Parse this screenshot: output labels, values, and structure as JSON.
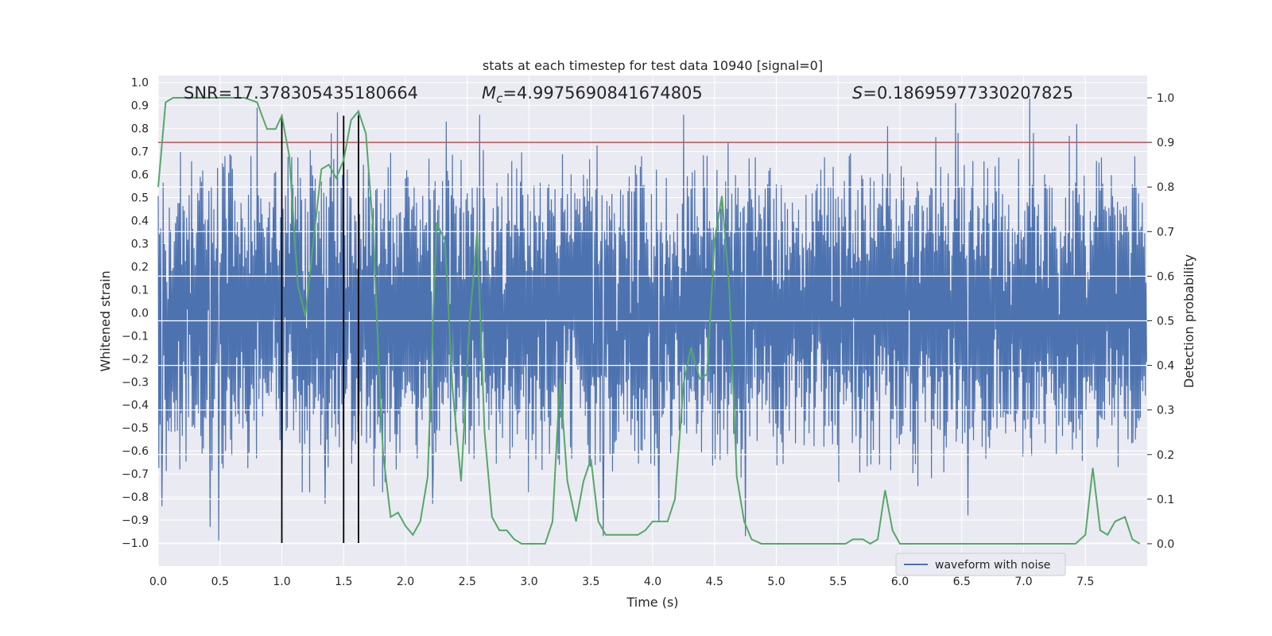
{
  "chart_data": {
    "type": "line",
    "title": "stats at each timestep for test data 10940 [signal=0]",
    "xlabel": "Time (s)",
    "ylabel_left": "Whitened strain",
    "ylabel_right": "Detection probability",
    "xlim": [
      0.0,
      8.0
    ],
    "ylim_left": [
      -1.1,
      1.03
    ],
    "ylim_right": [
      -0.05,
      1.05
    ],
    "x_ticks": [
      0.0,
      0.5,
      1.0,
      1.5,
      2.0,
      2.5,
      3.0,
      3.5,
      4.0,
      4.5,
      5.0,
      5.5,
      6.0,
      6.5,
      7.0,
      7.5
    ],
    "x_tick_labels": [
      "0.0",
      "0.5",
      "1.0",
      "1.5",
      "2.0",
      "2.5",
      "3.0",
      "3.5",
      "4.0",
      "4.5",
      "5.0",
      "5.5",
      "6.0",
      "6.5",
      "7.0",
      "7.5"
    ],
    "y_left_ticks": [
      1.0,
      0.9,
      0.8,
      0.7,
      0.6,
      0.5,
      0.4,
      0.3,
      0.2,
      0.1,
      0.0,
      -0.1,
      -0.2,
      -0.3,
      -0.4,
      -0.5,
      -0.6,
      -0.7,
      -0.8,
      -0.9,
      -1.0
    ],
    "y_left_tick_labels": [
      "1.0",
      "0.9",
      "0.8",
      "0.7",
      "0.6",
      "0.5",
      "0.4",
      "0.3",
      "0.2",
      "0.1",
      "0.0",
      "−0.1",
      "−0.2",
      "−0.3",
      "−0.4",
      "−0.5",
      "−0.6",
      "−0.7",
      "−0.8",
      "−0.9",
      "−1.0"
    ],
    "y_right_ticks": [
      1.0,
      0.9,
      0.8,
      0.7,
      0.6,
      0.5,
      0.4,
      0.3,
      0.2,
      0.1,
      0.0
    ],
    "y_right_tick_labels": [
      "1.0",
      "0.9",
      "0.8",
      "0.7",
      "0.6",
      "0.5",
      "0.4",
      "0.3",
      "0.2",
      "0.1",
      "0.0"
    ],
    "grid": true,
    "annotations": {
      "snr": "SNR=17.378305435180664",
      "mc_symbol": "M",
      "mc_subscript": "c",
      "mc_value": "=4.9975690841674805",
      "s_symbol": "S",
      "s_value": "=0.18695977330207825"
    },
    "threshold": {
      "value": 0.9,
      "axis": "right",
      "color": "#c44e52"
    },
    "vertical_markers": {
      "x": [
        1.0,
        1.5,
        1.62
      ],
      "ymin": -1.0,
      "ymax": 0.96,
      "color": "#000000"
    },
    "waveform": {
      "name": "waveform with noise",
      "color": "#4c72b0",
      "duration": 8.0,
      "num_samples": 1600,
      "envelope_typical": 0.4,
      "peaks": [
        {
          "x": 0.03,
          "y": -0.84
        },
        {
          "x": 0.42,
          "y": -0.93
        },
        {
          "x": 0.49,
          "y": -0.99
        },
        {
          "x": 0.8,
          "y": 0.89
        },
        {
          "x": 1.0,
          "y": -0.76
        },
        {
          "x": 1.35,
          "y": -0.83
        },
        {
          "x": 1.45,
          "y": 0.87
        },
        {
          "x": 1.62,
          "y": 0.88
        },
        {
          "x": 2.22,
          "y": -0.83
        },
        {
          "x": 2.33,
          "y": 0.83
        },
        {
          "x": 2.6,
          "y": 0.86
        },
        {
          "x": 3.6,
          "y": -0.97
        },
        {
          "x": 4.05,
          "y": -0.91
        },
        {
          "x": 4.25,
          "y": 0.86
        },
        {
          "x": 4.75,
          "y": -0.97
        },
        {
          "x": 5.9,
          "y": 0.81
        },
        {
          "x": 6.45,
          "y": 0.91
        },
        {
          "x": 6.55,
          "y": -0.88
        },
        {
          "x": 7.05,
          "y": 0.94
        },
        {
          "x": 7.43,
          "y": 0.82
        }
      ]
    },
    "probability": {
      "name": "detection probability",
      "color": "#55a868",
      "x": [
        0.0,
        0.06,
        0.12,
        0.2,
        0.3,
        0.4,
        0.5,
        0.6,
        0.7,
        0.8,
        0.88,
        0.95,
        1.0,
        1.06,
        1.13,
        1.19,
        1.26,
        1.32,
        1.38,
        1.44,
        1.5,
        1.56,
        1.62,
        1.68,
        1.74,
        1.8,
        1.82,
        1.88,
        1.94,
        2.0,
        2.06,
        2.12,
        2.18,
        2.25,
        2.32,
        2.38,
        2.45,
        2.52,
        2.58,
        2.64,
        2.7,
        2.76,
        2.82,
        2.88,
        2.94,
        3.0,
        3.06,
        3.13,
        3.19,
        3.25,
        3.31,
        3.38,
        3.44,
        3.5,
        3.56,
        3.62,
        3.68,
        3.75,
        3.82,
        3.88,
        3.94,
        4.0,
        4.06,
        4.12,
        4.18,
        4.25,
        4.31,
        4.38,
        4.44,
        4.5,
        4.56,
        4.62,
        4.68,
        4.74,
        4.8,
        4.88,
        5.0,
        5.2,
        5.4,
        5.5,
        5.56,
        5.62,
        5.7,
        5.76,
        5.82,
        5.88,
        5.94,
        6.0,
        6.1,
        6.3,
        6.5,
        6.7,
        6.9,
        7.0,
        7.1,
        7.3,
        7.42,
        7.5,
        7.56,
        7.62,
        7.68,
        7.74,
        7.82,
        7.88,
        7.94
      ],
      "y": [
        0.8,
        0.99,
        1.0,
        1.0,
        1.0,
        1.0,
        1.0,
        1.0,
        1.0,
        0.99,
        0.93,
        0.93,
        0.96,
        0.87,
        0.58,
        0.51,
        0.69,
        0.84,
        0.85,
        0.82,
        0.86,
        0.95,
        0.97,
        0.92,
        0.7,
        0.3,
        0.2,
        0.06,
        0.07,
        0.04,
        0.02,
        0.05,
        0.15,
        0.72,
        0.68,
        0.35,
        0.14,
        0.5,
        0.7,
        0.25,
        0.06,
        0.03,
        0.03,
        0.01,
        0.0,
        0.0,
        0.0,
        0.0,
        0.05,
        0.37,
        0.14,
        0.05,
        0.14,
        0.19,
        0.05,
        0.02,
        0.02,
        0.02,
        0.02,
        0.02,
        0.03,
        0.05,
        0.05,
        0.05,
        0.1,
        0.36,
        0.44,
        0.37,
        0.38,
        0.68,
        0.78,
        0.57,
        0.15,
        0.05,
        0.01,
        0.0,
        0.0,
        0.0,
        0.0,
        0.0,
        0.0,
        0.01,
        0.01,
        0.0,
        0.01,
        0.12,
        0.03,
        0.0,
        0.0,
        0.0,
        0.0,
        0.0,
        0.0,
        0.0,
        0.0,
        0.0,
        0.0,
        0.02,
        0.17,
        0.03,
        0.02,
        0.05,
        0.06,
        0.01,
        0.0
      ]
    },
    "legend": {
      "position": "lower-right",
      "entries": [
        "waveform with noise"
      ]
    }
  }
}
